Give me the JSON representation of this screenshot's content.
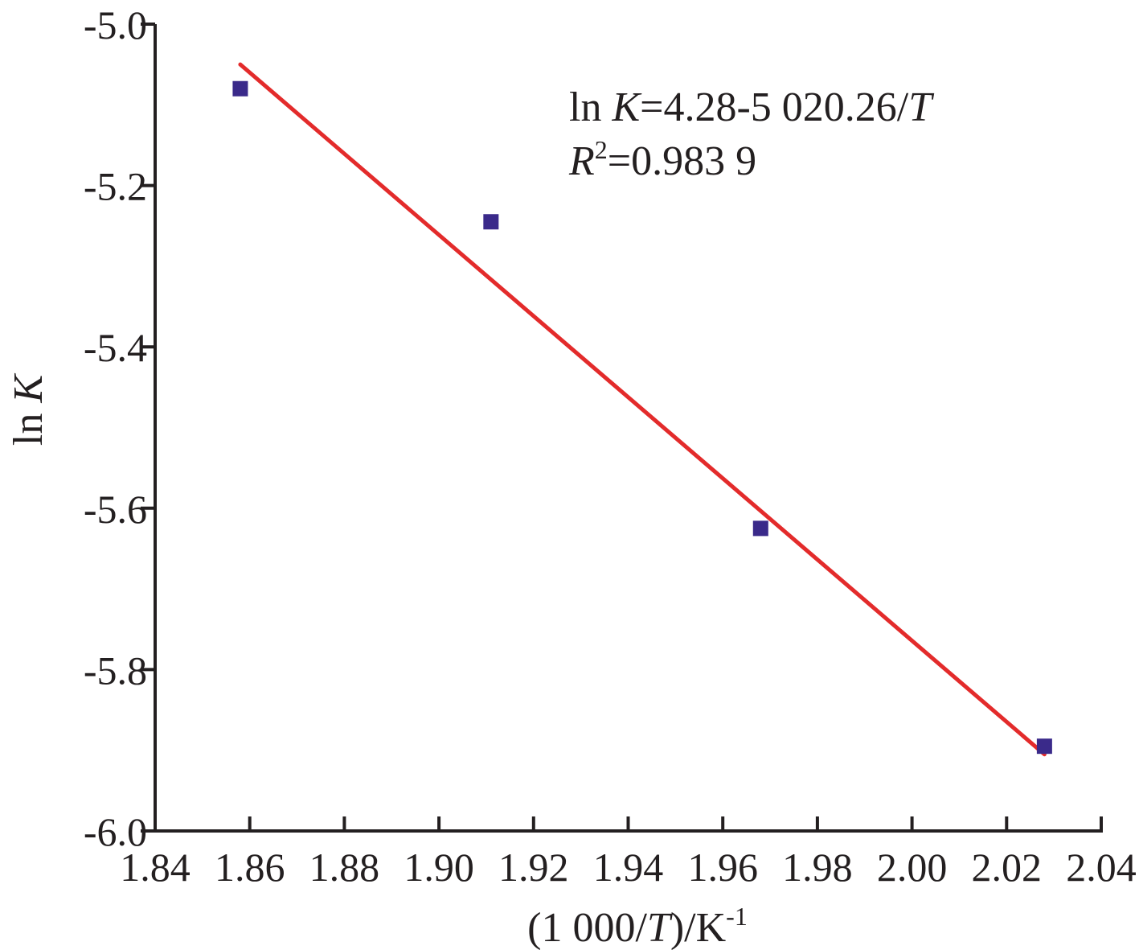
{
  "chart_data": {
    "type": "scatter",
    "xlabel": {
      "prefix": "(1 000/",
      "italic": "T",
      "suffix": ")/K",
      "sup": "-1"
    },
    "ylabel": {
      "prefix": "ln ",
      "italic": "K"
    },
    "xlim": [
      1.84,
      2.04
    ],
    "ylim": [
      -6.0,
      -5.0
    ],
    "xticks": [
      "1.84",
      "1.86",
      "1.88",
      "1.90",
      "1.92",
      "1.94",
      "1.96",
      "1.98",
      "2.00",
      "2.02",
      "2.04"
    ],
    "yticks": [
      "-5.0",
      "-5.2",
      "-5.4",
      "-5.6",
      "-5.8",
      "-6.0"
    ],
    "grid": false,
    "points": {
      "x": [
        1.858,
        1.911,
        1.968,
        2.028
      ],
      "y": [
        -5.08,
        -5.245,
        -5.625,
        -5.895
      ],
      "color": "#3a2a8a"
    },
    "fit_line": {
      "x": [
        1.858,
        2.028
      ],
      "y": [
        -5.05,
        -5.905
      ],
      "color": "#e32b2b"
    },
    "annotation": {
      "line1": {
        "prefix": "ln ",
        "italic": "K",
        "suffix": "=4.28-5 020.26/",
        "italic2": "T"
      },
      "line2": {
        "italic": "R",
        "sup": "2",
        "suffix": "=0.983 9"
      }
    }
  }
}
